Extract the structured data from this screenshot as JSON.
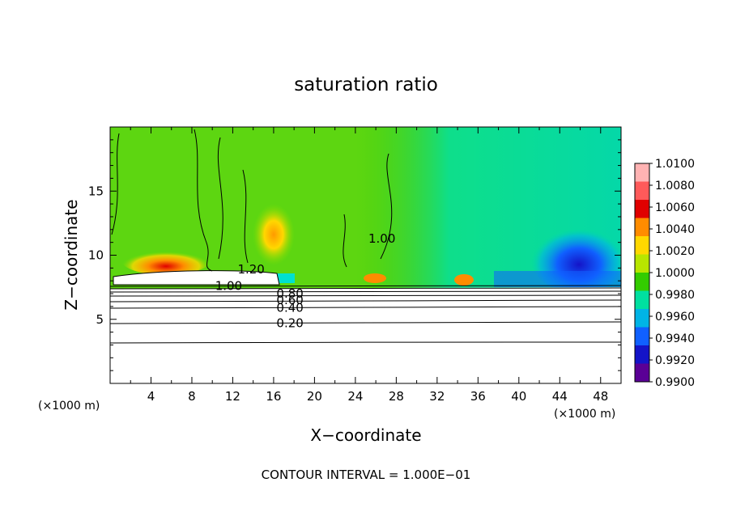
{
  "chart_data": {
    "type": "heatmap",
    "title": "saturation ratio",
    "xlabel": "X−coordinate",
    "ylabel": "Z−coordinate",
    "x_unit_left": "(×1000 m)",
    "x_unit_right": "(×1000 m)",
    "xlim": [
      0,
      50
    ],
    "ylim": [
      0,
      20
    ],
    "x_ticks": [
      4,
      8,
      12,
      16,
      20,
      24,
      28,
      32,
      36,
      40,
      44,
      48
    ],
    "y_ticks": [
      5,
      10,
      15
    ],
    "colorbar": {
      "levels": [
        "1.0100",
        "1.0080",
        "1.0060",
        "1.0040",
        "1.0020",
        "1.0000",
        "0.9980",
        "0.9960",
        "0.9940",
        "0.9920",
        "0.9900"
      ],
      "colors": [
        "#ffb3b3",
        "#ff5a5a",
        "#e00000",
        "#ff8c00",
        "#ffd800",
        "#b8e600",
        "#33cc00",
        "#00e0a0",
        "#00b4e6",
        "#1060ff",
        "#1414c8",
        "#5a0096"
      ],
      "range": [
        0.99,
        1.01
      ]
    },
    "contour_labels": [
      {
        "text": "1.20",
        "x": 13.8,
        "y": 8.9
      },
      {
        "text": "1.00",
        "x": 11.6,
        "y": 7.6
      },
      {
        "text": "0.80",
        "x": 17.6,
        "y": 7.0
      },
      {
        "text": "0.60",
        "x": 17.6,
        "y": 6.5
      },
      {
        "text": "0.40",
        "x": 17.6,
        "y": 5.9
      },
      {
        "text": "0.20",
        "x": 17.6,
        "y": 4.7
      },
      {
        "text": "1.00",
        "x": 26.6,
        "y": 11.3
      }
    ],
    "contour_interval_text": "CONTOUR INTERVAL = 1.000E−01"
  }
}
